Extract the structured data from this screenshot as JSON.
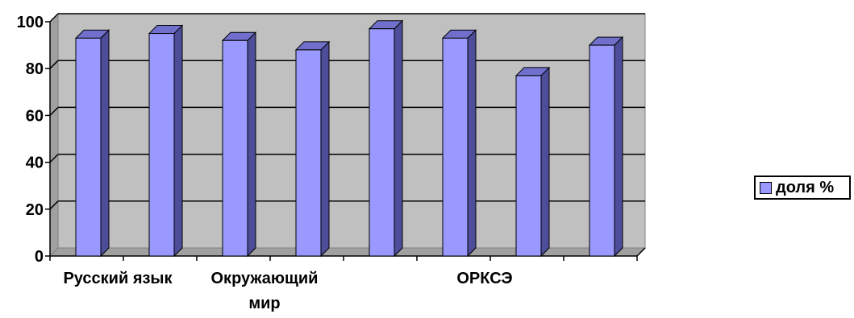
{
  "chart_data": {
    "type": "bar",
    "categories": [
      "Русский язык",
      "",
      "Окружающий мир",
      "",
      "",
      "ОРКСЭ",
      "",
      ""
    ],
    "category_label_lines": [
      [
        "Русский язык"
      ],
      [],
      [
        "Окружающий",
        "мир"
      ],
      [],
      [],
      [
        "ОРКСЭ"
      ],
      [],
      []
    ],
    "series": [
      {
        "name": "доля %",
        "values": [
          93,
          95,
          92,
          88,
          97,
          93,
          77,
          90
        ]
      }
    ],
    "yticks": [
      0,
      20,
      40,
      60,
      80,
      100
    ],
    "ylim": [
      0,
      100
    ],
    "grid": true,
    "three_d": true,
    "legend_position": "right",
    "colors": {
      "bar_front": "#9999ff",
      "bar_side": "#4d4d99",
      "bar_top": "#7070cc",
      "wall": "#c0c0c0",
      "floor": "#a0a0a0",
      "grid": "#000000"
    }
  }
}
